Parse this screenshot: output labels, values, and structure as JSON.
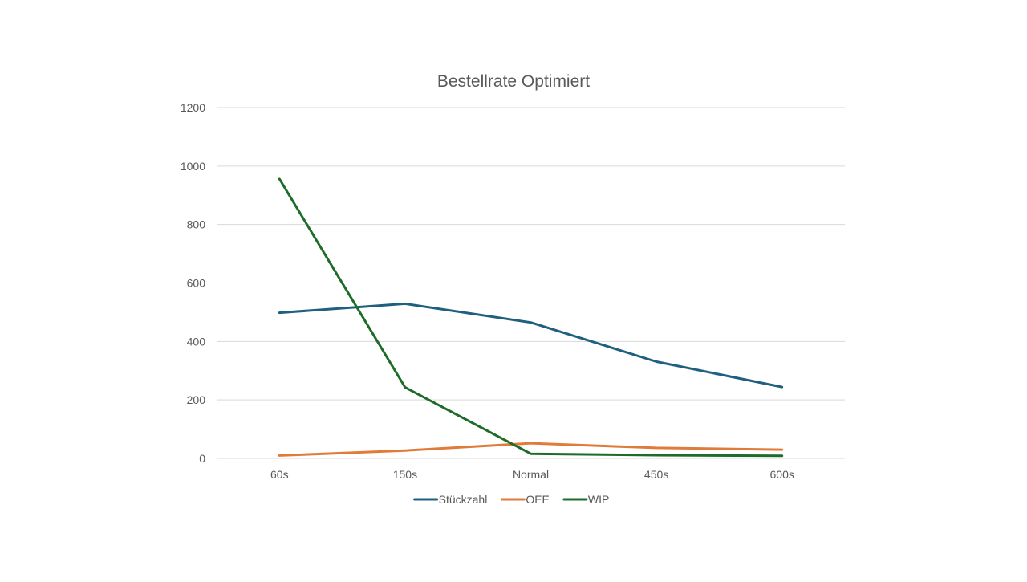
{
  "chart_data": {
    "type": "line",
    "title": "Bestellrate Optimiert",
    "xlabel": "",
    "ylabel": "",
    "categories": [
      "60s",
      "150s",
      "Normal",
      "450s",
      "600s"
    ],
    "ylim": [
      0,
      1200
    ],
    "yticks": [
      0,
      200,
      400,
      600,
      800,
      1000,
      1200
    ],
    "grid": true,
    "legend_position": "bottom",
    "series": [
      {
        "name": "Stückzahl",
        "color": "#1f5f7f",
        "values": [
          498,
          529,
          465,
          331,
          244
        ]
      },
      {
        "name": "OEE",
        "color": "#e07b39",
        "values": [
          10,
          27,
          52,
          36,
          30
        ]
      },
      {
        "name": "WIP",
        "color": "#1e6b2a",
        "values": [
          956,
          243,
          16,
          11,
          9
        ]
      }
    ]
  }
}
